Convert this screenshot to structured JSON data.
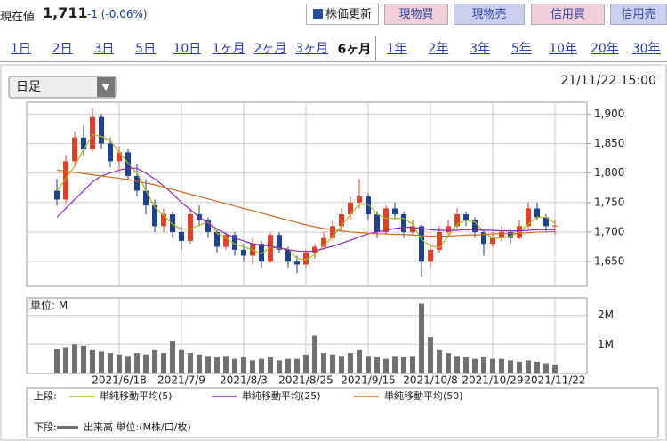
{
  "header": {
    "label": "現在値",
    "price": "1,711",
    "change": "-1 (-0.06%)",
    "buttons": [
      "株価更新",
      "現物買",
      "現物売",
      "信用買",
      "信用売"
    ]
  },
  "tabs": {
    "items": [
      "1日",
      "2日",
      "3日",
      "5日",
      "10日",
      "1ヶ月",
      "2ヶ月",
      "3ヶ月",
      "6ヶ月",
      "1年",
      "2年",
      "3年",
      "5年",
      "10年",
      "20年",
      "30年"
    ],
    "active": 8
  },
  "dropdown": "日足",
  "timestamp": "21/11/22 15:00",
  "chart_data": {
    "type": "candlestick",
    "categories": [
      null,
      null,
      null,
      null,
      null,
      null,
      null,
      "2021/6/18",
      null,
      null,
      null,
      null,
      null,
      null,
      "2021/7/9",
      null,
      null,
      null,
      null,
      null,
      null,
      "2021/8/3",
      null,
      null,
      null,
      null,
      null,
      null,
      "2021/8/25",
      null,
      null,
      null,
      null,
      null,
      null,
      "2021/9/15",
      null,
      null,
      null,
      null,
      null,
      null,
      "2021/10/8",
      null,
      null,
      null,
      null,
      null,
      null,
      "2021/10/29",
      null,
      null,
      null,
      null,
      null,
      null,
      "2021/11/22"
    ],
    "open": [
      1770,
      1755,
      1820,
      1860,
      1840,
      1895,
      1850,
      1820,
      1835,
      1795,
      1770,
      1745,
      1710,
      1730,
      1700,
      1685,
      1730,
      1720,
      1700,
      1675,
      1695,
      1670,
      1660,
      1680,
      1650,
      1695,
      1670,
      1650,
      1645,
      1665,
      1675,
      1690,
      1710,
      1730,
      1750,
      1760,
      1730,
      1700,
      1740,
      1730,
      1700,
      1710,
      1650,
      1670,
      1700,
      1710,
      1730,
      1720,
      1700,
      1680,
      1690,
      1700,
      1690,
      1710,
      1740,
      1725,
      1710
    ],
    "high": [
      1790,
      1830,
      1870,
      1880,
      1910,
      1900,
      1860,
      1845,
      1840,
      1815,
      1790,
      1755,
      1740,
      1735,
      1710,
      1740,
      1745,
      1725,
      1705,
      1700,
      1700,
      1680,
      1690,
      1685,
      1700,
      1700,
      1675,
      1660,
      1670,
      1680,
      1700,
      1720,
      1740,
      1760,
      1790,
      1765,
      1735,
      1745,
      1750,
      1735,
      1720,
      1712,
      1680,
      1710,
      1720,
      1740,
      1735,
      1725,
      1705,
      1700,
      1710,
      1705,
      1720,
      1750,
      1750,
      1730,
      1720
    ],
    "low": [
      1745,
      1750,
      1810,
      1830,
      1835,
      1840,
      1810,
      1800,
      1790,
      1760,
      1730,
      1700,
      1700,
      1690,
      1670,
      1680,
      1710,
      1690,
      1665,
      1670,
      1660,
      1650,
      1645,
      1640,
      1648,
      1665,
      1640,
      1630,
      1640,
      1655,
      1670,
      1685,
      1700,
      1720,
      1740,
      1720,
      1690,
      1695,
      1720,
      1690,
      1695,
      1625,
      1640,
      1665,
      1695,
      1705,
      1710,
      1690,
      1660,
      1675,
      1685,
      1680,
      1688,
      1705,
      1720,
      1700,
      1695
    ],
    "close": [
      1755,
      1820,
      1860,
      1840,
      1895,
      1850,
      1820,
      1835,
      1795,
      1770,
      1745,
      1710,
      1730,
      1700,
      1685,
      1730,
      1720,
      1700,
      1675,
      1695,
      1670,
      1660,
      1680,
      1650,
      1695,
      1670,
      1650,
      1645,
      1665,
      1675,
      1690,
      1710,
      1730,
      1750,
      1760,
      1730,
      1700,
      1740,
      1730,
      1700,
      1710,
      1650,
      1670,
      1700,
      1710,
      1730,
      1720,
      1700,
      1680,
      1690,
      1700,
      1690,
      1710,
      1740,
      1725,
      1710,
      1711
    ],
    "up_color": "#e0402a",
    "down_color": "#1f3f8f",
    "ylim": [
      1608,
      1920
    ],
    "yticks": [
      {
        "value": 1650,
        "label": "1,650"
      },
      {
        "value": 1700,
        "label": "1,700"
      },
      {
        "value": 1750,
        "label": "1,750"
      },
      {
        "value": 1800,
        "label": "1,800"
      },
      {
        "value": 1850,
        "label": "1,850"
      },
      {
        "value": 1900,
        "label": "1,900"
      }
    ],
    "grid": true,
    "upper_label": "上段:",
    "lower_label": "下段:",
    "series": [
      {
        "name": "単純移動平均(5)",
        "color": "#a8b820",
        "values": [
          1770,
          1790,
          1812,
          1840,
          1865,
          1862,
          1855,
          1835,
          1817,
          1800,
          1770,
          1742,
          1728,
          1713,
          1705,
          1705,
          1712,
          1717,
          1698,
          1690,
          1680,
          1675,
          1670,
          1663,
          1675,
          1672,
          1672,
          1655,
          1653,
          1662,
          1677,
          1692,
          1710,
          1730,
          1747,
          1747,
          1730,
          1723,
          1723,
          1723,
          1713,
          1687,
          1677,
          1673,
          1693,
          1713,
          1720,
          1717,
          1700,
          1690,
          1690,
          1693,
          1700,
          1713,
          1725,
          1725,
          1715
        ]
      },
      {
        "name": "単純移動平均(25)",
        "color": "#8a2ab8",
        "values": [
          1725,
          1740,
          1755,
          1770,
          1785,
          1795,
          1800,
          1805,
          1808,
          1808,
          1800,
          1790,
          1778,
          1765,
          1750,
          1738,
          1725,
          1715,
          1705,
          1697,
          1690,
          1685,
          1680,
          1678,
          1676,
          1673,
          1670,
          1668,
          1667,
          1668,
          1672,
          1676,
          1681,
          1686,
          1692,
          1697,
          1700,
          1703,
          1706,
          1708,
          1708,
          1706,
          1704,
          1703,
          1703,
          1703,
          1704,
          1704,
          1703,
          1703,
          1702,
          1702,
          1702,
          1703,
          1704,
          1704,
          1704
        ]
      },
      {
        "name": "単純移動平均(50)",
        "color": "#d2691e",
        "values": [
          1805,
          1803,
          1801,
          1799,
          1797,
          1795,
          1793,
          1791,
          1789,
          1786,
          1783,
          1780,
          1776,
          1772,
          1768,
          1764,
          1760,
          1756,
          1752,
          1748,
          1744,
          1740,
          1736,
          1732,
          1728,
          1724,
          1720,
          1716,
          1712,
          1709,
          1706,
          1704,
          1702,
          1700,
          1699,
          1698,
          1697,
          1697,
          1696,
          1696,
          1695,
          1694,
          1693,
          1693,
          1693,
          1694,
          1695,
          1695,
          1696,
          1697,
          1697,
          1698,
          1698,
          1699,
          1700,
          1700,
          1701
        ]
      }
    ],
    "volume": {
      "name": "出来高 単位:(M株/口/枚)",
      "color": "#707070",
      "unit_label": "単位: M",
      "values": [
        850000,
        900000,
        1000000,
        950000,
        800000,
        750000,
        700000,
        650000,
        600000,
        700000,
        650000,
        800000,
        700000,
        1100000,
        800000,
        700000,
        650000,
        600000,
        550000,
        600000,
        500000,
        550000,
        450000,
        500000,
        550000,
        450000,
        500000,
        500000,
        650000,
        1300000,
        700000,
        650000,
        600000,
        700000,
        800000,
        600000,
        550000,
        500000,
        600000,
        550000,
        600000,
        2400000,
        1250000,
        800000,
        700000,
        600000,
        550000,
        500000,
        550000,
        500000,
        500000,
        450000,
        400000,
        450000,
        400000,
        350000,
        300000
      ],
      "ylim": [
        0,
        2600000
      ],
      "yticks": [
        {
          "value": 1000000,
          "label": "1M"
        },
        {
          "value": 2000000,
          "label": "2M"
        }
      ]
    }
  }
}
